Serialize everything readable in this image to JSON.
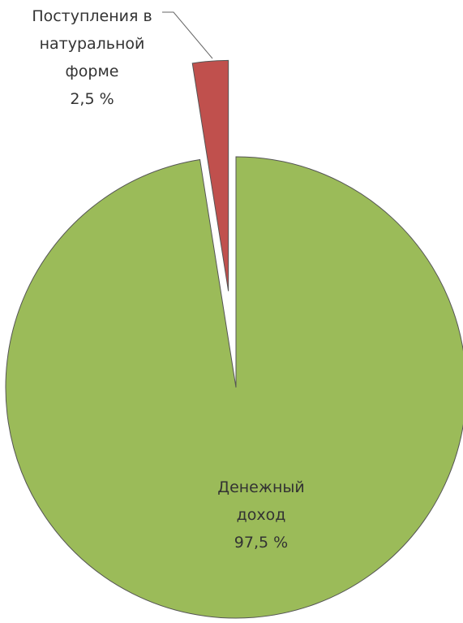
{
  "chart_data": {
    "type": "pie",
    "categories": [
      "Денежный доход",
      "Поступления в натуральной форме"
    ],
    "values": [
      97.5,
      2.5
    ],
    "value_labels": [
      "97,5 %",
      "2,5 %"
    ],
    "colors": [
      "#9bbb59",
      "#c0504d"
    ]
  }
}
